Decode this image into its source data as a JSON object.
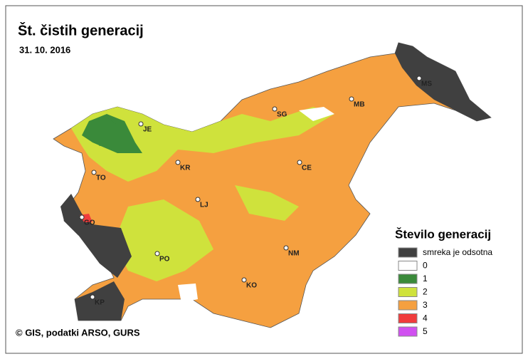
{
  "header": {
    "title": "Št. čistih generacij",
    "date": "31. 10. 2016"
  },
  "cities": [
    {
      "label": "MS"
    },
    {
      "label": "MB"
    },
    {
      "label": "SG"
    },
    {
      "label": "JE"
    },
    {
      "label": "CE"
    },
    {
      "label": "KR"
    },
    {
      "label": "TO"
    },
    {
      "label": "LJ"
    },
    {
      "label": "GO"
    },
    {
      "label": "NM"
    },
    {
      "label": "PO"
    },
    {
      "label": "KO"
    },
    {
      "label": "KP"
    }
  ],
  "legend": {
    "title": "Število generacij",
    "items": [
      {
        "label": "smreka je odsotna",
        "color": "#404040"
      },
      {
        "label": "0",
        "color": "#ffffff"
      },
      {
        "label": "1",
        "color": "#3a8a3a"
      },
      {
        "label": "2",
        "color": "#cfe23c"
      },
      {
        "label": "3",
        "color": "#f5a040"
      },
      {
        "label": "4",
        "color": "#f03c3c"
      },
      {
        "label": "5",
        "color": "#d050f0"
      }
    ]
  },
  "credit": "© GIS, podatki ARSO, GURS"
}
